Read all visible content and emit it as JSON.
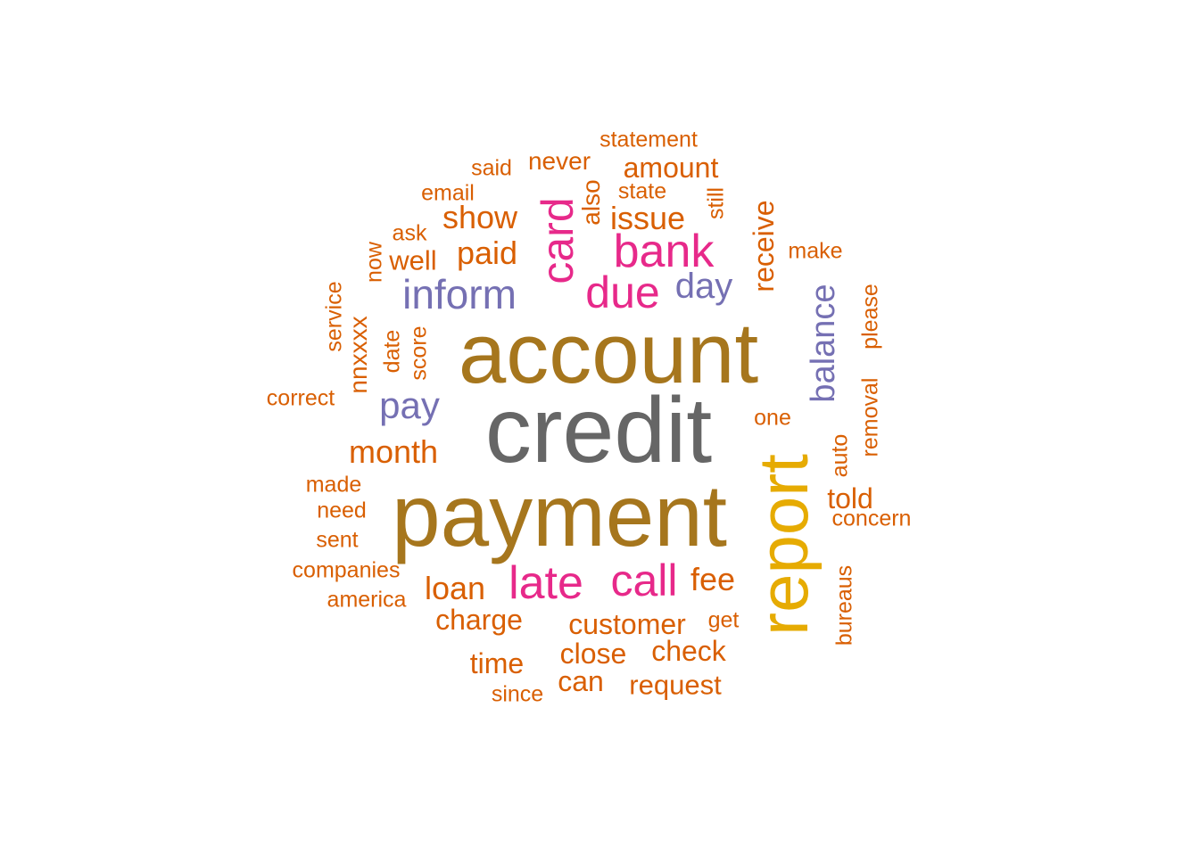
{
  "palette": {
    "gray": "#666666",
    "olive": "#A6761D",
    "gold": "#E6AB02",
    "pink": "#E7298A",
    "purple": "#7570B3",
    "orange": "#D95F02"
  },
  "words": [
    {
      "text": "credit",
      "color": "gray"
    },
    {
      "text": "account",
      "color": "olive"
    },
    {
      "text": "payment",
      "color": "olive"
    },
    {
      "text": "report",
      "color": "gold"
    },
    {
      "text": "card",
      "color": "pink"
    },
    {
      "text": "bank",
      "color": "pink"
    },
    {
      "text": "due",
      "color": "pink"
    },
    {
      "text": "late",
      "color": "pink"
    },
    {
      "text": "call",
      "color": "pink"
    },
    {
      "text": "inform",
      "color": "purple"
    },
    {
      "text": "day",
      "color": "purple"
    },
    {
      "text": "pay",
      "color": "purple"
    },
    {
      "text": "balance",
      "color": "purple"
    },
    {
      "text": "statement",
      "color": "orange"
    },
    {
      "text": "said",
      "color": "orange"
    },
    {
      "text": "never",
      "color": "orange"
    },
    {
      "text": "amount",
      "color": "orange"
    },
    {
      "text": "email",
      "color": "orange"
    },
    {
      "text": "also",
      "color": "orange"
    },
    {
      "text": "state",
      "color": "orange"
    },
    {
      "text": "still",
      "color": "orange"
    },
    {
      "text": "show",
      "color": "orange"
    },
    {
      "text": "issue",
      "color": "orange"
    },
    {
      "text": "receive",
      "color": "orange"
    },
    {
      "text": "ask",
      "color": "orange"
    },
    {
      "text": "now",
      "color": "orange"
    },
    {
      "text": "well",
      "color": "orange"
    },
    {
      "text": "paid",
      "color": "orange"
    },
    {
      "text": "make",
      "color": "orange"
    },
    {
      "text": "service",
      "color": "orange"
    },
    {
      "text": "nnxxxx",
      "color": "orange"
    },
    {
      "text": "date",
      "color": "orange"
    },
    {
      "text": "score",
      "color": "orange"
    },
    {
      "text": "please",
      "color": "orange"
    },
    {
      "text": "removal",
      "color": "orange"
    },
    {
      "text": "correct",
      "color": "orange"
    },
    {
      "text": "one",
      "color": "orange"
    },
    {
      "text": "auto",
      "color": "orange"
    },
    {
      "text": "month",
      "color": "orange"
    },
    {
      "text": "made",
      "color": "orange"
    },
    {
      "text": "told",
      "color": "orange"
    },
    {
      "text": "need",
      "color": "orange"
    },
    {
      "text": "concern",
      "color": "orange"
    },
    {
      "text": "sent",
      "color": "orange"
    },
    {
      "text": "companies",
      "color": "orange"
    },
    {
      "text": "bureaus",
      "color": "orange"
    },
    {
      "text": "loan",
      "color": "orange"
    },
    {
      "text": "fee",
      "color": "orange"
    },
    {
      "text": "america",
      "color": "orange"
    },
    {
      "text": "charge",
      "color": "orange"
    },
    {
      "text": "customer",
      "color": "orange"
    },
    {
      "text": "get",
      "color": "orange"
    },
    {
      "text": "time",
      "color": "orange"
    },
    {
      "text": "close",
      "color": "orange"
    },
    {
      "text": "check",
      "color": "orange"
    },
    {
      "text": "can",
      "color": "orange"
    },
    {
      "text": "request",
      "color": "orange"
    },
    {
      "text": "since",
      "color": "orange"
    }
  ]
}
